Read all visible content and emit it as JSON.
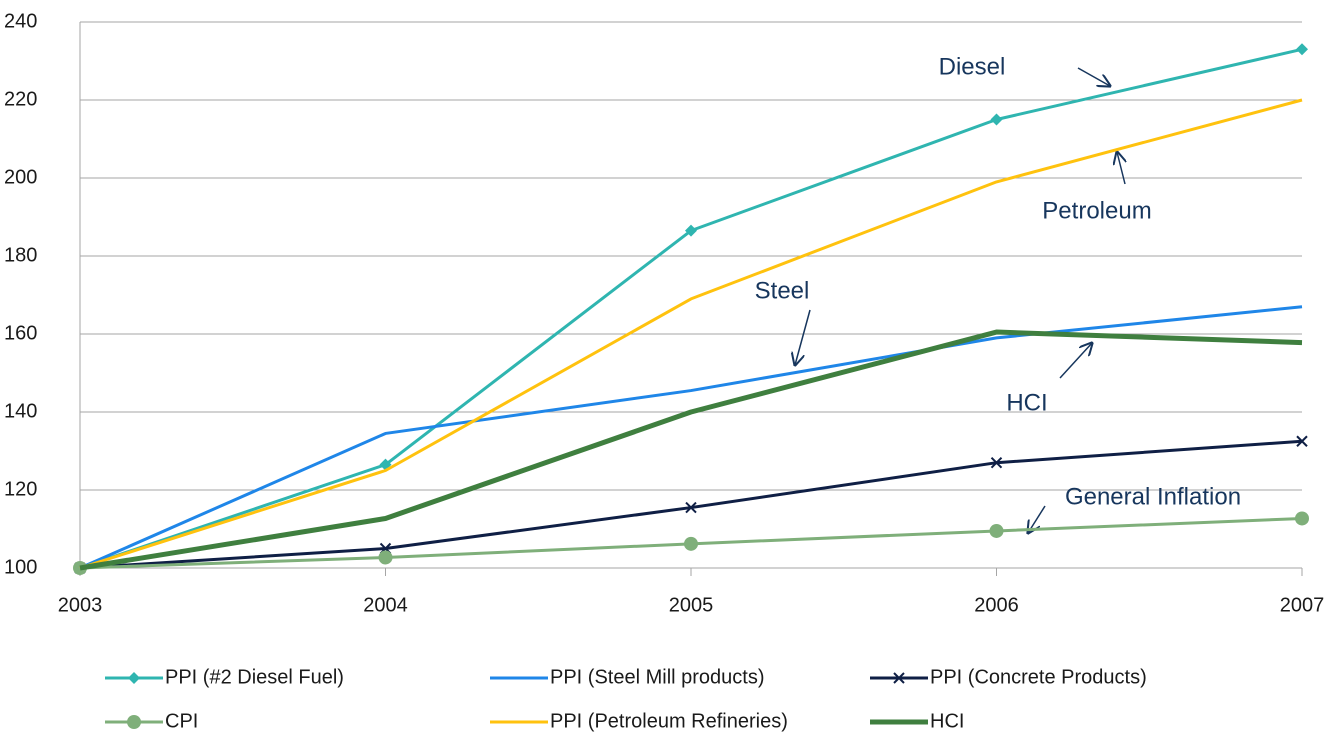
{
  "chart_data": {
    "type": "line",
    "categories": [
      "2003",
      "2004",
      "2005",
      "2006",
      "2007"
    ],
    "series": [
      {
        "name": "PPI (#2 Diesel Fuel)",
        "color": "#2fb5b0",
        "marker": "diamond",
        "values": [
          100,
          126.5,
          186.5,
          215,
          233
        ]
      },
      {
        "name": "PPI (Steel Mill products)",
        "color": "#1f86e8",
        "marker": "none",
        "values": [
          100,
          134.5,
          145.5,
          159,
          167
        ]
      },
      {
        "name": "PPI (Concrete Products)",
        "color": "#0f1f45",
        "marker": "x",
        "values": [
          100,
          105,
          115.5,
          127,
          132.5
        ]
      },
      {
        "name": "CPI",
        "color": "#7faf7a",
        "marker": "circle",
        "values": [
          100,
          102.7,
          106.2,
          109.5,
          112.7
        ]
      },
      {
        "name": "PPI (Petroleum Refineries)",
        "color": "#ffc20e",
        "marker": "none",
        "values": [
          100,
          125,
          169,
          199,
          220
        ]
      },
      {
        "name": "HCI",
        "color": "#3f7f3f",
        "marker": "none",
        "width": 5,
        "values": [
          100,
          112.7,
          140,
          160.5,
          157.8
        ]
      }
    ],
    "annotations": [
      "Diesel",
      "Petroleum",
      "Steel",
      "HCI",
      "General Inflation"
    ],
    "ylim": [
      100,
      240
    ],
    "yticks": [
      100,
      120,
      140,
      160,
      180,
      200,
      220,
      240
    ],
    "grid": true,
    "legend": "bottom"
  }
}
